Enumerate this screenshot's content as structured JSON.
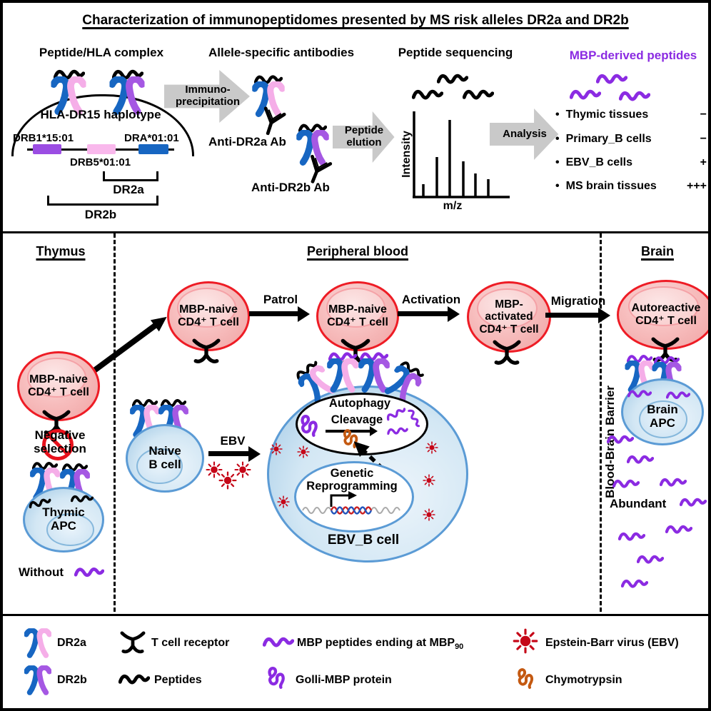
{
  "title": "Characterization of immunopeptidomes presented by MS risk alleles DR2a and DR2b",
  "top": {
    "hla_section": {
      "heading": "Peptide/HLA complex",
      "arc_label": "HLA-DR15 haplotype",
      "gene_drb1": "DRB1*15:01",
      "gene_drb5": "DRB5*01:01",
      "gene_dra": "DRA*01:01",
      "bracket_dr2a": "DR2a",
      "bracket_dr2b": "DR2b"
    },
    "ip_arrow_label": "Immuno-\nprecipitation",
    "ab_section": {
      "heading": "Allele-specific antibodies",
      "anti_dr2a": "Anti-DR2a Ab",
      "anti_dr2b": "Anti-DR2b Ab"
    },
    "elution_arrow_label": "Peptide\nelution",
    "seq_section": {
      "heading": "Peptide sequencing",
      "ylabel": "Intensity",
      "xlabel": "m/z",
      "peaks": [
        [
          41,
          106
        ],
        [
          60,
          68
        ],
        [
          78,
          16
        ],
        [
          97,
          74
        ],
        [
          114,
          91
        ],
        [
          132,
          99
        ]
      ]
    },
    "analysis_arrow_label": "Analysis",
    "results": {
      "heading": "MBP-derived peptides",
      "bullet": "•",
      "items": [
        {
          "label": "Thymic tissues",
          "value": "−"
        },
        {
          "label": "Primary_B cells",
          "value": "−"
        },
        {
          "label": "EBV_B cells",
          "value": "+"
        },
        {
          "label": "MS brain tissues",
          "value": "+++"
        }
      ]
    }
  },
  "middle": {
    "headers": {
      "thymus": "Thymus",
      "peripheral": "Peripheral blood",
      "brain": "Brain"
    },
    "bbb": "Blood-Brain Barrier",
    "t1": "MBP-naive\nCD4⁺ T cell",
    "t2": "MBP-naive\nCD4⁺ T cell",
    "t3": "MBP-\nactivated\nCD4⁺ T cell",
    "t4": "Autoreactive\nCD4⁺ T cell",
    "arrows": {
      "patrol": "Patrol",
      "activation": "Activation",
      "migration": "Migration",
      "ebv": "EBV"
    },
    "negative_selection": "Negative\nselection",
    "thymic_apc": "Thymic\nAPC",
    "without": "Without",
    "naive_b": "Naive\nB cell",
    "autophagy": "Autophagy",
    "cleavage": "Cleavage",
    "genetic": "Genetic\nReprogramming",
    "ebv_b": "EBV_B cell",
    "brain_apc": "Brain\nAPC",
    "abundant": "Abundant"
  },
  "legend": {
    "dr2a": "DR2a",
    "dr2b": "DR2b",
    "tcr": "T cell receptor",
    "peptides": "Peptides",
    "mbp_prefix": "MBP peptides ending at MBP",
    "mbp_sub": "90",
    "golli": "Golli-MBP protein",
    "ebv": "Epstein-Barr virus (EBV)",
    "chymo": "Chymotrypsin"
  },
  "colors": {
    "hla_blue": "#1766C2",
    "dr2a_pink": "#F5AEE8",
    "dr2b_purple": "#A558E3",
    "mbp_purple": "#8B2BE2",
    "tcell_border": "#EE1C25",
    "bcell_border": "#5B9BD5",
    "ebv_red": "#C50718",
    "chymotrypsin_orange": "#C45911",
    "block_arrow_gray": "#C9C9C9"
  }
}
